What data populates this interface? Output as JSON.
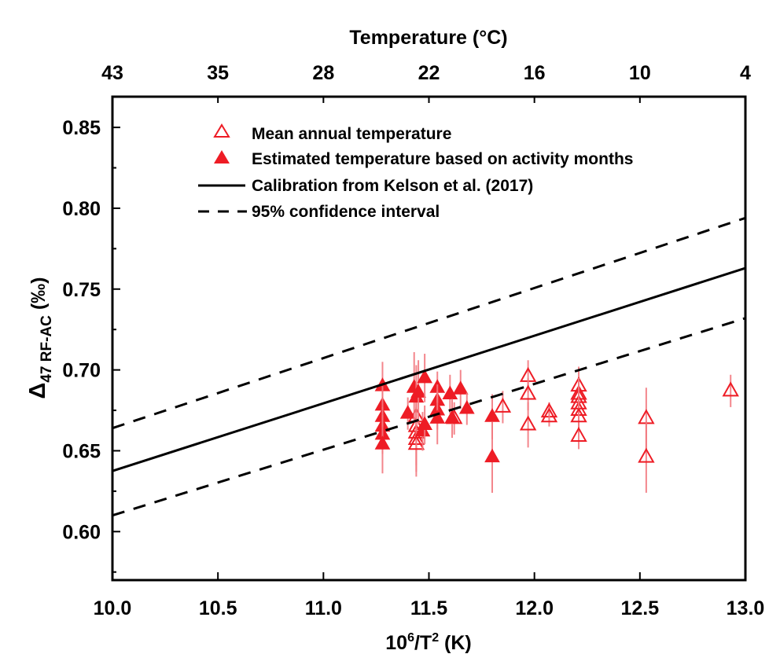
{
  "chart_data": {
    "type": "scatter",
    "title": "",
    "xlabel": "10^6/T^2 (K)",
    "xlabel_parts": {
      "base": "10",
      "sup1": "6",
      "mid": "/T",
      "sup2": "2",
      "tail": " (K)"
    },
    "ylabel": "Δ47 RF-AC (‰)",
    "ylabel_parts": {
      "delta": "Δ",
      "sub": "47 RF-AC",
      "unit": " (‰)"
    },
    "top_xlabel": "Temperature (°C)",
    "xlim": [
      10.0,
      13.0
    ],
    "ylim": [
      0.57,
      0.869
    ],
    "x_ticks": [
      "10.0",
      "10.5",
      "11.0",
      "11.5",
      "12.0",
      "12.5",
      "13.0"
    ],
    "x_tick_values": [
      10.0,
      10.5,
      11.0,
      11.5,
      12.0,
      12.5,
      13.0
    ],
    "y_ticks": [
      "0.60",
      "0.65",
      "0.70",
      "0.75",
      "0.80",
      "0.85"
    ],
    "y_tick_values": [
      0.6,
      0.65,
      0.7,
      0.75,
      0.8,
      0.85
    ],
    "top_ticks": [
      "43",
      "35",
      "28",
      "22",
      "16",
      "10",
      "4"
    ],
    "grid": false,
    "legend_position": "top-left",
    "colors": {
      "marker": "#ee1c25",
      "errorbar": "#f27a80",
      "line": "#000000"
    },
    "legend": [
      {
        "label": "Mean annual temperature",
        "kind": "open-triangle"
      },
      {
        "label": "Estimated temperature based on activity months",
        "kind": "filled-triangle"
      },
      {
        "label": "Calibration from Kelson et al. (2017)",
        "kind": "solid-line"
      },
      {
        "label": "95% confidence interval",
        "kind": "dashed-line"
      }
    ],
    "lines": {
      "calibration": {
        "x": [
          10.0,
          13.0
        ],
        "y": [
          0.6375,
          0.763
        ]
      },
      "ci_upper": {
        "x": [
          10.0,
          13.0
        ],
        "y": [
          0.664,
          0.794
        ]
      },
      "ci_lower": {
        "x": [
          10.0,
          13.0
        ],
        "y": [
          0.61,
          0.732
        ]
      }
    },
    "series": [
      {
        "name": "Mean annual temperature",
        "marker": "open-triangle",
        "points": [
          {
            "x": 11.44,
            "y": 0.671,
            "err": 0.012
          },
          {
            "x": 11.44,
            "y": 0.665,
            "err": 0.012
          },
          {
            "x": 11.44,
            "y": 0.661,
            "err": 0.02
          },
          {
            "x": 11.44,
            "y": 0.657,
            "err": 0.02
          },
          {
            "x": 11.44,
            "y": 0.654,
            "err": 0.02
          },
          {
            "x": 11.62,
            "y": 0.67,
            "err": 0.01
          },
          {
            "x": 11.85,
            "y": 0.677,
            "err": 0.01
          },
          {
            "x": 11.97,
            "y": 0.696,
            "err": 0.01
          },
          {
            "x": 11.97,
            "y": 0.685,
            "err": 0.01
          },
          {
            "x": 11.97,
            "y": 0.666,
            "err": 0.014
          },
          {
            "x": 12.07,
            "y": 0.674,
            "err": 0.006
          },
          {
            "x": 12.07,
            "y": 0.671,
            "err": 0.006
          },
          {
            "x": 12.21,
            "y": 0.69,
            "err": 0.012
          },
          {
            "x": 12.21,
            "y": 0.685,
            "err": 0.01
          },
          {
            "x": 12.21,
            "y": 0.683,
            "err": 0.01
          },
          {
            "x": 12.21,
            "y": 0.679,
            "err": 0.01
          },
          {
            "x": 12.21,
            "y": 0.675,
            "err": 0.01
          },
          {
            "x": 12.21,
            "y": 0.671,
            "err": 0.01
          },
          {
            "x": 12.21,
            "y": 0.659,
            "err": 0.008
          },
          {
            "x": 12.53,
            "y": 0.67,
            "err": 0.019
          },
          {
            "x": 12.53,
            "y": 0.646,
            "err": 0.022
          },
          {
            "x": 12.93,
            "y": 0.687,
            "err": 0.01
          }
        ]
      },
      {
        "name": "Estimated temperature based on activity months",
        "marker": "filled-triangle",
        "points": [
          {
            "x": 11.28,
            "y": 0.69,
            "err": 0.015
          },
          {
            "x": 11.28,
            "y": 0.678,
            "err": 0.012
          },
          {
            "x": 11.28,
            "y": 0.671,
            "err": 0.012
          },
          {
            "x": 11.28,
            "y": 0.665,
            "err": 0.012
          },
          {
            "x": 11.28,
            "y": 0.66,
            "err": 0.012
          },
          {
            "x": 11.28,
            "y": 0.654,
            "err": 0.018
          },
          {
            "x": 11.4,
            "y": 0.673,
            "err": 0.01
          },
          {
            "x": 11.43,
            "y": 0.689,
            "err": 0.022
          },
          {
            "x": 11.44,
            "y": 0.683,
            "err": 0.02
          },
          {
            "x": 11.45,
            "y": 0.686,
            "err": 0.02
          },
          {
            "x": 11.48,
            "y": 0.695,
            "err": 0.015
          },
          {
            "x": 11.47,
            "y": 0.662,
            "err": 0.012
          },
          {
            "x": 11.48,
            "y": 0.666,
            "err": 0.012
          },
          {
            "x": 11.54,
            "y": 0.689,
            "err": 0.01
          },
          {
            "x": 11.54,
            "y": 0.681,
            "err": 0.01
          },
          {
            "x": 11.54,
            "y": 0.675,
            "err": 0.012
          },
          {
            "x": 11.54,
            "y": 0.67,
            "err": 0.016
          },
          {
            "x": 11.6,
            "y": 0.685,
            "err": 0.012
          },
          {
            "x": 11.61,
            "y": 0.67,
            "err": 0.012
          },
          {
            "x": 11.65,
            "y": 0.688,
            "err": 0.012
          },
          {
            "x": 11.68,
            "y": 0.676,
            "err": 0.01
          },
          {
            "x": 11.8,
            "y": 0.671,
            "err": 0.014
          },
          {
            "x": 11.8,
            "y": 0.646,
            "err": 0.022
          }
        ]
      }
    ]
  }
}
